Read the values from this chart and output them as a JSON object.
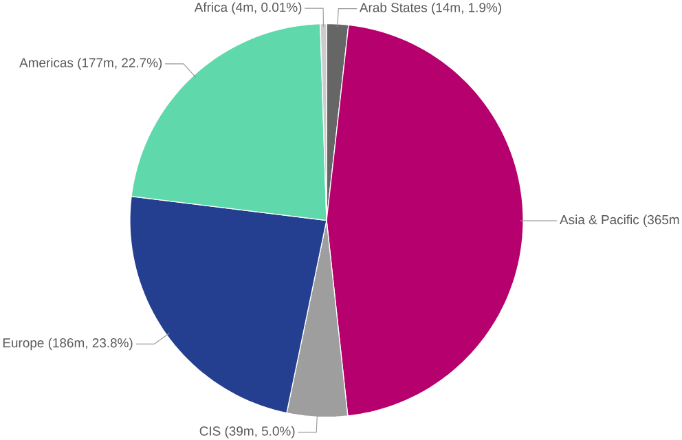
{
  "chart_data": {
    "type": "pie",
    "categories": [
      "Arab States (14m, 1.9%)",
      "Asia & Pacific (365m",
      "CIS (39m, 5.0%)",
      "Europe (186m, 23.8%)",
      "Americas (177m, 22.7%)",
      "Africa (4m, 0.01%)"
    ],
    "values": [
      14,
      365,
      39,
      186,
      177,
      4
    ],
    "colors": [
      "#666666",
      "#b5006e",
      "#9e9e9e",
      "#243f8f",
      "#5fd8ab",
      "#cccccc"
    ]
  }
}
